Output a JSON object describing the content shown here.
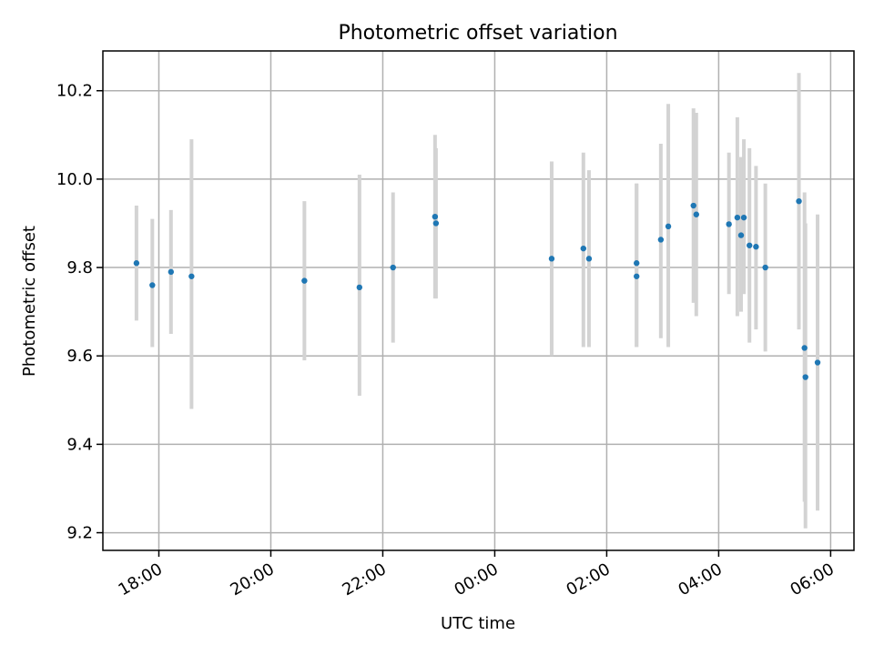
{
  "chart_data": {
    "type": "scatter",
    "title": "Photometric offset variation",
    "xlabel": "UTC time",
    "ylabel": "Photometric offset",
    "x_axis": "time",
    "x_range": [
      "17:00",
      "30:25"
    ],
    "ylim": [
      9.16,
      10.29
    ],
    "grid": true,
    "legend": "none",
    "x_ticks": [
      {
        "label": "18:00",
        "value": "18:00"
      },
      {
        "label": "20:00",
        "value": "20:00"
      },
      {
        "label": "22:00",
        "value": "22:00"
      },
      {
        "label": "00:00",
        "value": "24:00"
      },
      {
        "label": "02:00",
        "value": "26:00"
      },
      {
        "label": "04:00",
        "value": "28:00"
      },
      {
        "label": "06:00",
        "value": "30:00"
      }
    ],
    "y_ticks": [
      9.2,
      9.4,
      9.6,
      9.8,
      10.0,
      10.2
    ],
    "y_tick_labels": [
      "9.2",
      "9.4",
      "9.6",
      "9.8",
      "10.0",
      "10.2"
    ],
    "colors": {
      "points": "#1f77b4",
      "errorbars": "#d3d3d3",
      "grid": "#b0b0b0"
    },
    "series": [
      {
        "points": [
          {
            "t": "17:36",
            "y": 9.81,
            "lo": 9.68,
            "hi": 9.94
          },
          {
            "t": "17:53",
            "y": 9.76,
            "lo": 9.62,
            "hi": 9.91
          },
          {
            "t": "18:13",
            "y": 9.79,
            "lo": 9.65,
            "hi": 9.93
          },
          {
            "t": "18:35",
            "y": 9.78,
            "lo": 9.48,
            "hi": 10.09
          },
          {
            "t": "20:36",
            "y": 9.77,
            "lo": 9.59,
            "hi": 9.95
          },
          {
            "t": "21:35",
            "y": 9.755,
            "lo": 9.51,
            "hi": 10.01
          },
          {
            "t": "22:11",
            "y": 9.8,
            "lo": 9.63,
            "hi": 9.97
          },
          {
            "t": "22:56",
            "y": 9.915,
            "lo": 9.73,
            "hi": 10.1
          },
          {
            "t": "22:57",
            "y": 9.9,
            "lo": 9.73,
            "hi": 10.07
          },
          {
            "t": "25:01",
            "y": 9.82,
            "lo": 9.6,
            "hi": 10.04
          },
          {
            "t": "25:35",
            "y": 9.843,
            "lo": 9.62,
            "hi": 10.06
          },
          {
            "t": "25:41",
            "y": 9.82,
            "lo": 9.62,
            "hi": 10.02
          },
          {
            "t": "26:32",
            "y": 9.81,
            "lo": 9.62,
            "hi": 9.99
          },
          {
            "t": "26:32",
            "y": 9.78,
            "lo": 9.62,
            "hi": 9.99
          },
          {
            "t": "26:58",
            "y": 9.863,
            "lo": 9.64,
            "hi": 10.08
          },
          {
            "t": "27:06",
            "y": 9.893,
            "lo": 9.62,
            "hi": 10.17
          },
          {
            "t": "27:33",
            "y": 9.94,
            "lo": 9.72,
            "hi": 10.16
          },
          {
            "t": "27:36",
            "y": 9.92,
            "lo": 9.69,
            "hi": 10.15
          },
          {
            "t": "28:11",
            "y": 9.898,
            "lo": 9.74,
            "hi": 10.06
          },
          {
            "t": "28:20",
            "y": 9.913,
            "lo": 9.69,
            "hi": 10.14
          },
          {
            "t": "28:24",
            "y": 9.873,
            "lo": 9.7,
            "hi": 10.05
          },
          {
            "t": "28:27",
            "y": 9.913,
            "lo": 9.74,
            "hi": 10.09
          },
          {
            "t": "28:33",
            "y": 9.85,
            "lo": 9.63,
            "hi": 10.07
          },
          {
            "t": "28:40",
            "y": 9.847,
            "lo": 9.66,
            "hi": 10.03
          },
          {
            "t": "28:50",
            "y": 9.8,
            "lo": 9.61,
            "hi": 9.99
          },
          {
            "t": "29:26",
            "y": 9.95,
            "lo": 9.66,
            "hi": 10.24
          },
          {
            "t": "29:32",
            "y": 9.618,
            "lo": 9.27,
            "hi": 9.97
          },
          {
            "t": "29:33",
            "y": 9.552,
            "lo": 9.21,
            "hi": 9.9
          },
          {
            "t": "29:46",
            "y": 9.585,
            "lo": 9.25,
            "hi": 9.92
          }
        ]
      }
    ]
  }
}
